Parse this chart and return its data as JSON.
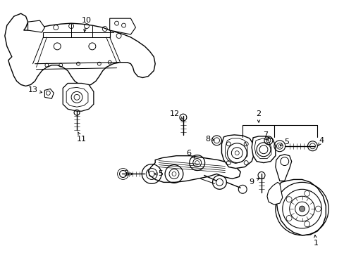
{
  "background_color": "#ffffff",
  "line_color": "#000000",
  "fig_width": 4.89,
  "fig_height": 3.6,
  "dpi": 100,
  "label_positions": {
    "1": [
      0.888,
      0.072,
      0.873,
      0.108
    ],
    "2": [
      0.748,
      0.618,
      0.748,
      0.598
    ],
    "3": [
      0.388,
      0.38,
      0.405,
      0.358
    ],
    "4": [
      0.935,
      0.52,
      0.915,
      0.505
    ],
    "5a": [
      0.555,
      0.345,
      0.523,
      0.358
    ],
    "5b": [
      0.878,
      0.525,
      0.878,
      0.508
    ],
    "6": [
      0.562,
      0.468,
      0.568,
      0.452
    ],
    "7": [
      0.812,
      0.525,
      0.82,
      0.508
    ],
    "8": [
      0.698,
      0.512,
      0.718,
      0.498
    ],
    "9": [
      0.76,
      0.388,
      0.773,
      0.375
    ],
    "10": [
      0.248,
      0.888,
      0.235,
      0.868
    ],
    "11": [
      0.233,
      0.248,
      0.243,
      0.268
    ],
    "12": [
      0.498,
      0.565,
      0.508,
      0.545
    ],
    "13": [
      0.092,
      0.498,
      0.103,
      0.508
    ]
  }
}
